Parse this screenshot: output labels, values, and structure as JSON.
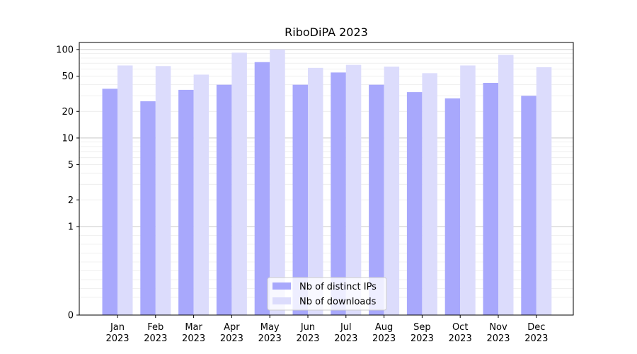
{
  "chart_data": {
    "type": "bar",
    "title": "RiboDiPA 2023",
    "xlabel": "",
    "ylabel": "",
    "yscale": "symlog",
    "ylim": [
      0,
      120
    ],
    "grid": true,
    "legend_position": "lower-center",
    "categories": [
      {
        "month": "Jan",
        "year": "2023"
      },
      {
        "month": "Feb",
        "year": "2023"
      },
      {
        "month": "Mar",
        "year": "2023"
      },
      {
        "month": "Apr",
        "year": "2023"
      },
      {
        "month": "May",
        "year": "2023"
      },
      {
        "month": "Jun",
        "year": "2023"
      },
      {
        "month": "Jul",
        "year": "2023"
      },
      {
        "month": "Aug",
        "year": "2023"
      },
      {
        "month": "Sep",
        "year": "2023"
      },
      {
        "month": "Oct",
        "year": "2023"
      },
      {
        "month": "Nov",
        "year": "2023"
      },
      {
        "month": "Dec",
        "year": "2023"
      }
    ],
    "y_ticks": [
      "0",
      "1",
      "2",
      "5",
      "10",
      "20",
      "50",
      "100"
    ],
    "series": [
      {
        "name": "Nb of distinct IPs",
        "color": "#a8a8fc",
        "values": [
          36,
          26,
          35,
          40,
          72,
          40,
          55,
          40,
          33,
          28,
          42,
          30
        ]
      },
      {
        "name": "Nb of downloads",
        "color": "#dcdcfc",
        "values": [
          66,
          65,
          52,
          92,
          100,
          62,
          67,
          64,
          54,
          66,
          87,
          63
        ]
      }
    ]
  }
}
